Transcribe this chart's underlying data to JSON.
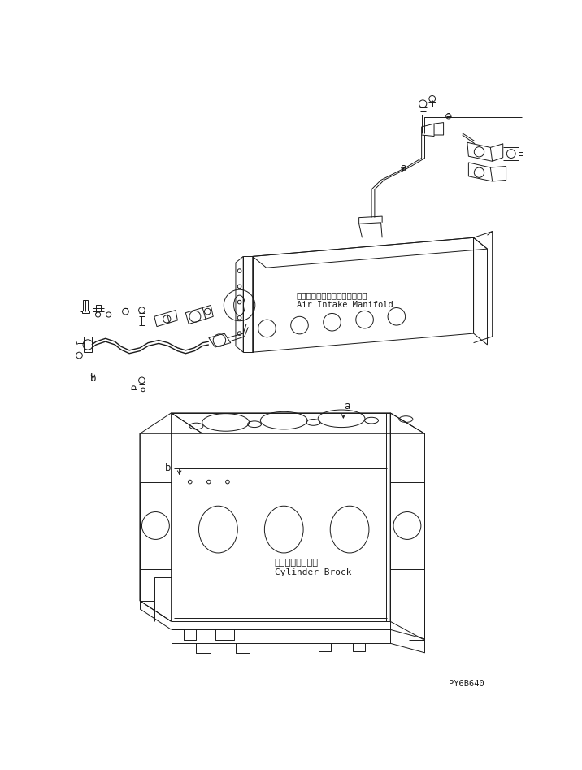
{
  "background_color": "#ffffff",
  "line_color": "#1a1a1a",
  "text_color": "#1a1a1a",
  "part_code": "PY6B640",
  "labels": {
    "air_intake_jp": "エアーインテークマニホールド",
    "air_intake_en": "Air Intake Manifold",
    "cylinder_jp": "シリンダブロック",
    "cylinder_en": "Cylinder Brock",
    "label_a1": "a",
    "label_a2": "a",
    "label_b1": "b",
    "label_b2": "b"
  }
}
